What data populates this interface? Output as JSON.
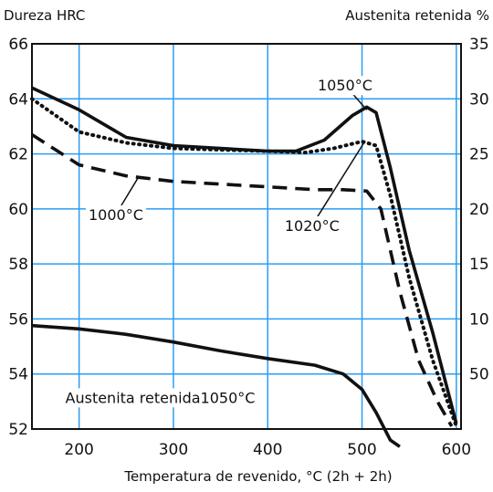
{
  "chart_data": {
    "type": "line",
    "title": "",
    "xlabel": "Temperatura de revenido, °C (2h + 2h)",
    "ylabel_left": "Dureza HRC",
    "ylabel_right": "Austenita retenida %",
    "xlim": [
      150,
      605
    ],
    "ylim_left": [
      52,
      66
    ],
    "ylim_right": [
      0,
      35
    ],
    "x_ticks": [
      "200",
      "300",
      "400",
      "500",
      "600"
    ],
    "y_ticks_left": [
      "66",
      "64",
      "62",
      "60",
      "58",
      "56",
      "54",
      "52"
    ],
    "y_ticks_right": [
      "35",
      "30",
      "25",
      "20",
      "15",
      "10",
      "50"
    ],
    "grid": true,
    "grid_color": "#2a9df4",
    "series": [
      {
        "name": "1050°C",
        "axis": "left",
        "style": "solid",
        "points": [
          [
            150,
            64.4
          ],
          [
            200,
            63.6
          ],
          [
            250,
            62.6
          ],
          [
            300,
            62.3
          ],
          [
            350,
            62.2
          ],
          [
            400,
            62.1
          ],
          [
            430,
            62.1
          ],
          [
            460,
            62.5
          ],
          [
            490,
            63.4
          ],
          [
            505,
            63.7
          ],
          [
            515,
            63.5
          ],
          [
            530,
            61.5
          ],
          [
            550,
            58.5
          ],
          [
            575,
            55.5
          ],
          [
            600,
            52.2
          ]
        ]
      },
      {
        "name": "1020°C",
        "axis": "left",
        "style": "dotted",
        "points": [
          [
            150,
            64.0
          ],
          [
            200,
            62.8
          ],
          [
            250,
            62.4
          ],
          [
            300,
            62.2
          ],
          [
            350,
            62.15
          ],
          [
            400,
            62.1
          ],
          [
            440,
            62.05
          ],
          [
            470,
            62.2
          ],
          [
            500,
            62.45
          ],
          [
            515,
            62.3
          ],
          [
            530,
            60.5
          ],
          [
            550,
            57.5
          ],
          [
            575,
            54.5
          ],
          [
            600,
            52.1
          ]
        ]
      },
      {
        "name": "1000°C",
        "axis": "left",
        "style": "dashed",
        "points": [
          [
            150,
            62.7
          ],
          [
            200,
            61.6
          ],
          [
            250,
            61.2
          ],
          [
            300,
            61.0
          ],
          [
            350,
            60.9
          ],
          [
            400,
            60.8
          ],
          [
            450,
            60.7
          ],
          [
            480,
            60.7
          ],
          [
            505,
            60.65
          ],
          [
            520,
            60.0
          ],
          [
            540,
            57.0
          ],
          [
            560,
            54.5
          ],
          [
            580,
            53.0
          ],
          [
            595,
            52.1
          ]
        ]
      },
      {
        "name": "Austenita retenida1050°C",
        "axis": "right",
        "style": "solid",
        "points": [
          [
            150,
            9.4
          ],
          [
            200,
            9.1
          ],
          [
            250,
            8.6
          ],
          [
            300,
            7.9
          ],
          [
            350,
            7.1
          ],
          [
            400,
            6.4
          ],
          [
            450,
            5.8
          ],
          [
            480,
            5.0
          ],
          [
            500,
            3.6
          ],
          [
            515,
            1.5
          ],
          [
            530,
            -1.0
          ],
          [
            540,
            -1.6
          ]
        ]
      }
    ],
    "annotations": [
      {
        "label": "1050°C",
        "x": 482,
        "y": 64.5,
        "ax": 505,
        "ay": 63.6
      },
      {
        "label": "1020°C",
        "x": 447,
        "y": 59.4,
        "ax": 502,
        "ay": 62.4
      },
      {
        "label": "1000°C",
        "x": 239,
        "y": 59.8,
        "ax": 262,
        "ay": 61.1
      },
      {
        "label": "Austenita retenida1050°C",
        "x": 286,
        "y": 53.15,
        "ax": null,
        "ay": null
      }
    ]
  }
}
